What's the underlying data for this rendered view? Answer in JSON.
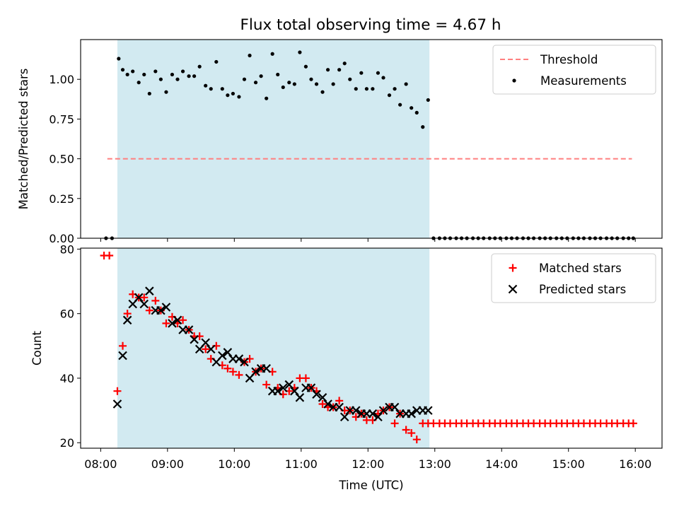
{
  "figure_title": "Flux total observing time = 4.67 h",
  "chart_data": [
    {
      "type": "scatter",
      "title": "Flux total observing time = 4.67 h",
      "ylabel": "Matched/Predicted stars",
      "xlabel": "",
      "x_unit": "hours UTC",
      "xlim": [
        7.7,
        16.4
      ],
      "ylim": [
        0.0,
        1.25
      ],
      "yticks": [
        0.0,
        0.25,
        0.5,
        0.75,
        1.0
      ],
      "ytick_labels": [
        "0.00",
        "0.25",
        "0.50",
        "0.75",
        "1.00"
      ],
      "shaded_interval": [
        8.25,
        12.92
      ],
      "shade_color": "#add8e6",
      "threshold": {
        "name": "Threshold",
        "value": 0.5,
        "x_range": [
          8.1,
          15.95
        ],
        "color": "#ff7f7f",
        "style": "dashed"
      },
      "legend": {
        "position": "top-right",
        "entries": [
          "Threshold",
          "Measurements"
        ]
      },
      "series": [
        {
          "name": "Measurements",
          "marker": "dot",
          "color": "#000000",
          "x": [
            8.08,
            8.17,
            8.27,
            8.33,
            8.4,
            8.48,
            8.57,
            8.65,
            8.73,
            8.82,
            8.9,
            8.98,
            9.07,
            9.15,
            9.23,
            9.32,
            9.4,
            9.48,
            9.57,
            9.65,
            9.73,
            9.82,
            9.9,
            9.98,
            10.07,
            10.15,
            10.23,
            10.32,
            10.4,
            10.48,
            10.57,
            10.65,
            10.73,
            10.82,
            10.9,
            10.98,
            11.07,
            11.15,
            11.23,
            11.32,
            11.4,
            11.48,
            11.57,
            11.65,
            11.73,
            11.82,
            11.9,
            11.98,
            12.07,
            12.15,
            12.23,
            12.32,
            12.4,
            12.48,
            12.57,
            12.65,
            12.73,
            12.82,
            12.9,
            12.98,
            13.07,
            13.15,
            13.23,
            13.32,
            13.4,
            13.48,
            13.57,
            13.65,
            13.73,
            13.82,
            13.9,
            13.98,
            14.07,
            14.15,
            14.23,
            14.32,
            14.4,
            14.48,
            14.57,
            14.65,
            14.73,
            14.82,
            14.9,
            14.98,
            15.07,
            15.15,
            15.23,
            15.32,
            15.4,
            15.48,
            15.57,
            15.65,
            15.73,
            15.82,
            15.9,
            15.97
          ],
          "y": [
            0.0,
            0.0,
            1.13,
            1.06,
            1.03,
            1.05,
            0.98,
            1.03,
            0.91,
            1.05,
            1.0,
            0.92,
            1.03,
            1.0,
            1.05,
            1.02,
            1.02,
            1.08,
            0.96,
            0.94,
            1.11,
            0.94,
            0.9,
            0.91,
            0.89,
            1.0,
            1.15,
            0.98,
            1.02,
            0.88,
            1.16,
            1.03,
            0.95,
            0.98,
            0.97,
            1.17,
            1.08,
            1.0,
            0.97,
            0.92,
            1.06,
            0.97,
            1.06,
            1.1,
            1.0,
            0.94,
            1.04,
            0.94,
            0.94,
            1.04,
            1.01,
            0.9,
            0.94,
            0.84,
            0.97,
            0.82,
            0.79,
            0.7,
            0.87,
            0.0,
            0.0,
            0.0,
            0.0,
            0.0,
            0.0,
            0.0,
            0.0,
            0.0,
            0.0,
            0.0,
            0.0,
            0.0,
            0.0,
            0.0,
            0.0,
            0.0,
            0.0,
            0.0,
            0.0,
            0.0,
            0.0,
            0.0,
            0.0,
            0.0,
            0.0,
            0.0,
            0.0,
            0.0,
            0.0,
            0.0,
            0.0,
            0.0,
            0.0,
            0.0,
            0.0,
            0.0
          ]
        }
      ]
    },
    {
      "type": "scatter",
      "title": "",
      "ylabel": "Count",
      "xlabel": "Time (UTC)",
      "x_unit": "hours UTC",
      "xlim": [
        7.7,
        16.4
      ],
      "ylim": [
        18.3,
        80.3
      ],
      "yticks": [
        20,
        40,
        60,
        80
      ],
      "ytick_labels": [
        "20",
        "40",
        "60",
        "80"
      ],
      "xticks": [
        8,
        9,
        10,
        11,
        12,
        13,
        14,
        15,
        16
      ],
      "xtick_labels": [
        "08:00",
        "09:00",
        "10:00",
        "11:00",
        "12:00",
        "13:00",
        "14:00",
        "15:00",
        "16:00"
      ],
      "shaded_interval": [
        8.25,
        12.92
      ],
      "shade_color": "#add8e6",
      "legend": {
        "position": "top-right",
        "entries": [
          "Matched stars",
          "Predicted stars"
        ]
      },
      "series": [
        {
          "name": "Matched stars",
          "marker": "plus",
          "color": "#ff0000",
          "x": [
            8.05,
            8.13,
            8.25,
            8.33,
            8.4,
            8.48,
            8.57,
            8.65,
            8.73,
            8.82,
            8.9,
            8.98,
            9.07,
            9.15,
            9.23,
            9.32,
            9.4,
            9.48,
            9.57,
            9.65,
            9.73,
            9.82,
            9.9,
            9.98,
            10.07,
            10.15,
            10.23,
            10.32,
            10.4,
            10.48,
            10.57,
            10.65,
            10.73,
            10.82,
            10.9,
            10.98,
            11.07,
            11.15,
            11.23,
            11.32,
            11.4,
            11.48,
            11.57,
            11.65,
            11.73,
            11.82,
            11.9,
            11.98,
            12.07,
            12.15,
            12.23,
            12.32,
            12.4,
            12.48,
            12.57,
            12.65,
            12.73,
            12.82,
            12.9,
            12.98,
            13.07,
            13.15,
            13.23,
            13.32,
            13.4,
            13.48,
            13.57,
            13.65,
            13.73,
            13.82,
            13.9,
            13.98,
            14.07,
            14.15,
            14.23,
            14.32,
            14.4,
            14.48,
            14.57,
            14.65,
            14.73,
            14.82,
            14.9,
            14.98,
            15.07,
            15.15,
            15.23,
            15.32,
            15.4,
            15.48,
            15.57,
            15.65,
            15.73,
            15.82,
            15.9,
            15.97
          ],
          "y": [
            78,
            78,
            36,
            50,
            60,
            66,
            65,
            65,
            61,
            64,
            61,
            57,
            59,
            57,
            58,
            55,
            53,
            53,
            49,
            46,
            50,
            44,
            43,
            42,
            41,
            45,
            46,
            42,
            43,
            38,
            42,
            37,
            35,
            36,
            37,
            40,
            40,
            37,
            36,
            32,
            31,
            31,
            33,
            30,
            30,
            28,
            29,
            27,
            27,
            29,
            30,
            31,
            26,
            29,
            24,
            23,
            21,
            26,
            26,
            26,
            26,
            26,
            26,
            26,
            26,
            26,
            26,
            26,
            26,
            26,
            26,
            26,
            26,
            26,
            26,
            26,
            26,
            26,
            26,
            26,
            26,
            26,
            26,
            26,
            26,
            26,
            26,
            26,
            26,
            26,
            26,
            26,
            26,
            26,
            26,
            26
          ]
        },
        {
          "name": "Predicted stars",
          "marker": "x",
          "color": "#000000",
          "x": [
            8.25,
            8.33,
            8.4,
            8.48,
            8.57,
            8.65,
            8.73,
            8.82,
            8.9,
            8.98,
            9.07,
            9.15,
            9.23,
            9.32,
            9.4,
            9.48,
            9.57,
            9.65,
            9.73,
            9.82,
            9.9,
            9.98,
            10.07,
            10.15,
            10.23,
            10.32,
            10.4,
            10.48,
            10.57,
            10.65,
            10.73,
            10.82,
            10.9,
            10.98,
            11.07,
            11.15,
            11.23,
            11.32,
            11.4,
            11.48,
            11.57,
            11.65,
            11.73,
            11.82,
            11.9,
            11.98,
            12.07,
            12.15,
            12.23,
            12.32,
            12.4,
            12.48,
            12.57,
            12.65,
            12.73,
            12.82,
            12.9
          ],
          "y": [
            32,
            47,
            58,
            63,
            65,
            63,
            67,
            61,
            61,
            62,
            57,
            58,
            55,
            55,
            52,
            49,
            51,
            49,
            45,
            47,
            48,
            46,
            46,
            45,
            40,
            42,
            43,
            43,
            36,
            36,
            37,
            38,
            36,
            34,
            37,
            37,
            35,
            34,
            32,
            31,
            31,
            28,
            30,
            30,
            29,
            29,
            29,
            28,
            30,
            31,
            31,
            29,
            29,
            29,
            30,
            30,
            30
          ]
        }
      ]
    }
  ]
}
